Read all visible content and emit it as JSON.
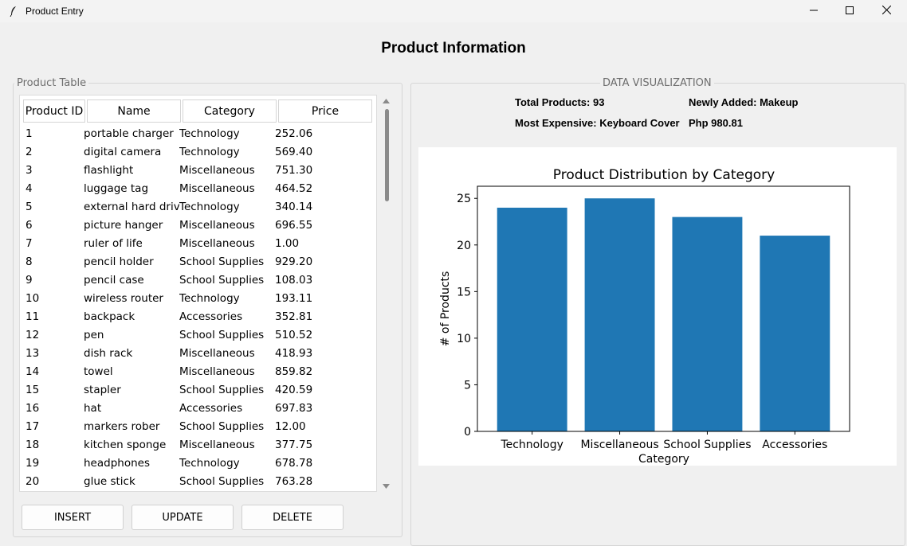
{
  "window": {
    "title": "Product Entry",
    "icon": "feather-icon"
  },
  "page": {
    "heading": "Product Information"
  },
  "table_frame": {
    "label": "Product Table",
    "columns": [
      "Product ID",
      "Name",
      "Category",
      "Price"
    ],
    "rows": [
      [
        "1",
        "portable charger",
        "Technology",
        "252.06"
      ],
      [
        "2",
        "digital camera",
        "Technology",
        "569.40"
      ],
      [
        "3",
        "flashlight",
        "Miscellaneous",
        "751.30"
      ],
      [
        "4",
        "luggage tag",
        "Miscellaneous",
        "464.52"
      ],
      [
        "5",
        "external hard drive",
        "Technology",
        "340.14"
      ],
      [
        "6",
        "picture hanger",
        "Miscellaneous",
        "696.55"
      ],
      [
        "7",
        "ruler of life",
        "Miscellaneous",
        "1.00"
      ],
      [
        "8",
        "pencil holder",
        "School Supplies",
        "929.20"
      ],
      [
        "9",
        "pencil case",
        "School Supplies",
        "108.03"
      ],
      [
        "10",
        "wireless router",
        "Technology",
        "193.11"
      ],
      [
        "11",
        "backpack",
        "Accessories",
        "352.81"
      ],
      [
        "12",
        "pen",
        "School Supplies",
        "510.52"
      ],
      [
        "13",
        "dish rack",
        "Miscellaneous",
        "418.93"
      ],
      [
        "14",
        "towel",
        "Miscellaneous",
        "859.82"
      ],
      [
        "15",
        "stapler",
        "School Supplies",
        "420.59"
      ],
      [
        "16",
        "hat",
        "Accessories",
        "697.83"
      ],
      [
        "17",
        "markers rober",
        "School Supplies",
        "12.00"
      ],
      [
        "18",
        "kitchen sponge",
        "Miscellaneous",
        "377.75"
      ],
      [
        "19",
        "headphones",
        "Technology",
        "678.78"
      ],
      [
        "20",
        "glue stick",
        "School Supplies",
        "763.28"
      ]
    ],
    "buttons": {
      "insert": "INSERT",
      "update": "UPDATE",
      "delete": "DELETE"
    }
  },
  "visualization": {
    "label": "DATA VISUALIZATION",
    "total_products": "Total Products: 93",
    "newly_added": "Newly Added: Makeup",
    "most_expensive": "Most Expensive: Keyboard Cover",
    "most_expensive_price": "Php 980.81"
  },
  "colors": {
    "bar": "#1f77b4"
  },
  "chart_data": {
    "type": "bar",
    "title": "Product Distribution by Category",
    "xlabel": "Category",
    "ylabel": "# of Products",
    "categories": [
      "Technology",
      "Miscellaneous",
      "School Supplies",
      "Accessories"
    ],
    "values": [
      24,
      25,
      23,
      21
    ],
    "ylim": [
      0,
      26.3
    ],
    "yticks": [
      0,
      5,
      10,
      15,
      20,
      25
    ],
    "grid": false
  }
}
